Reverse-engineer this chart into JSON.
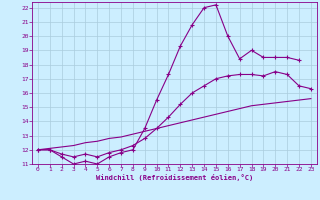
{
  "xlabel": "Windchill (Refroidissement éolien,°C)",
  "bg_color": "#cceeff",
  "grid_color": "#aaccdd",
  "line_color": "#880088",
  "xlim": [
    -0.5,
    23.5
  ],
  "ylim": [
    11,
    22.4
  ],
  "xticks": [
    0,
    1,
    2,
    3,
    4,
    5,
    6,
    7,
    8,
    9,
    10,
    11,
    12,
    13,
    14,
    15,
    16,
    17,
    18,
    19,
    20,
    21,
    22,
    23
  ],
  "yticks": [
    11,
    12,
    13,
    14,
    15,
    16,
    17,
    18,
    19,
    20,
    21,
    22
  ],
  "line1_x": [
    0,
    1,
    2,
    3,
    4,
    5,
    6,
    7,
    8,
    9,
    10,
    11,
    12,
    13,
    14,
    15,
    16,
    17,
    18,
    19,
    20,
    21,
    22
  ],
  "line1_y": [
    12.0,
    12.0,
    11.5,
    11.0,
    11.2,
    11.0,
    11.5,
    11.8,
    12.0,
    13.5,
    15.5,
    17.3,
    19.3,
    20.8,
    22.0,
    22.2,
    20.0,
    18.4,
    19.0,
    18.5,
    18.5,
    18.5,
    18.3
  ],
  "line2_x": [
    0,
    1,
    2,
    3,
    4,
    5,
    6,
    7,
    8,
    9,
    10,
    11,
    12,
    13,
    14,
    15,
    16,
    17,
    18,
    19,
    20,
    21,
    22,
    23
  ],
  "line2_y": [
    12.0,
    12.0,
    11.7,
    11.5,
    11.7,
    11.5,
    11.8,
    12.0,
    12.3,
    12.8,
    13.5,
    14.3,
    15.2,
    16.0,
    16.5,
    17.0,
    17.2,
    17.3,
    17.3,
    17.2,
    17.5,
    17.3,
    16.5,
    16.3
  ],
  "line3_x": [
    0,
    1,
    2,
    3,
    4,
    5,
    6,
    7,
    8,
    9,
    10,
    11,
    12,
    13,
    14,
    15,
    16,
    17,
    18,
    19,
    20,
    21,
    22,
    23
  ],
  "line3_y": [
    12.0,
    12.1,
    12.2,
    12.3,
    12.5,
    12.6,
    12.8,
    12.9,
    13.1,
    13.3,
    13.5,
    13.7,
    13.9,
    14.1,
    14.3,
    14.5,
    14.7,
    14.9,
    15.1,
    15.2,
    15.3,
    15.4,
    15.5,
    15.6
  ]
}
